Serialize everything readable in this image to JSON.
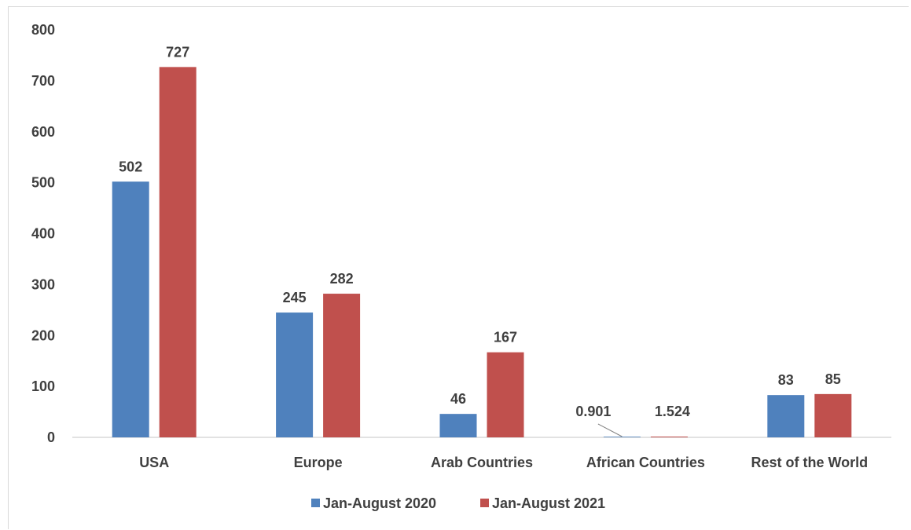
{
  "chart_data": {
    "type": "bar",
    "title": "",
    "xlabel": "",
    "ylabel": "",
    "categories": [
      "USA",
      "Europe",
      "Arab Countries",
      "African Countries",
      "Rest of the World"
    ],
    "series": [
      {
        "name": "Jan-August 2020",
        "color": "#4f81bd",
        "values": [
          502,
          245,
          46,
          0.901,
          83
        ]
      },
      {
        "name": "Jan-August 2021",
        "color": "#c0504d",
        "values": [
          727,
          282,
          167,
          1.524,
          85
        ]
      }
    ],
    "ylim": [
      0,
      800
    ],
    "yticks": [
      0,
      100,
      200,
      300,
      400,
      500,
      600,
      700,
      800
    ],
    "grid": false,
    "legend_position": "bottom"
  }
}
